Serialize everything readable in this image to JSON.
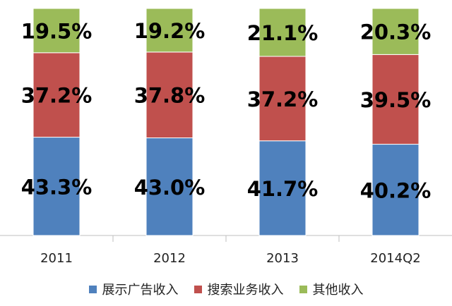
{
  "chart_data": {
    "type": "bar",
    "stacked": true,
    "percent_stacked": true,
    "categories": [
      "2011",
      "2012",
      "2013",
      "2014Q2"
    ],
    "series": [
      {
        "name": "展示广告收入",
        "color": "#4F81BD",
        "values": [
          43.3,
          43.0,
          41.7,
          40.2
        ],
        "labels": [
          "43.3%",
          "43.0%",
          "41.7%",
          "40.2%"
        ]
      },
      {
        "name": "搜索业务收入",
        "color": "#C0504D",
        "values": [
          37.2,
          37.8,
          37.2,
          39.5
        ],
        "labels": [
          "37.2%",
          "37.8%",
          "37.2%",
          "39.5%"
        ]
      },
      {
        "name": "其他收入",
        "color": "#9BBB59",
        "values": [
          19.5,
          19.2,
          21.1,
          20.3
        ],
        "labels": [
          "19.5%",
          "19.2%",
          "21.1%",
          "20.3%"
        ]
      }
    ],
    "ylim": [
      0,
      100
    ],
    "grid": false,
    "legend_position": "bottom"
  }
}
